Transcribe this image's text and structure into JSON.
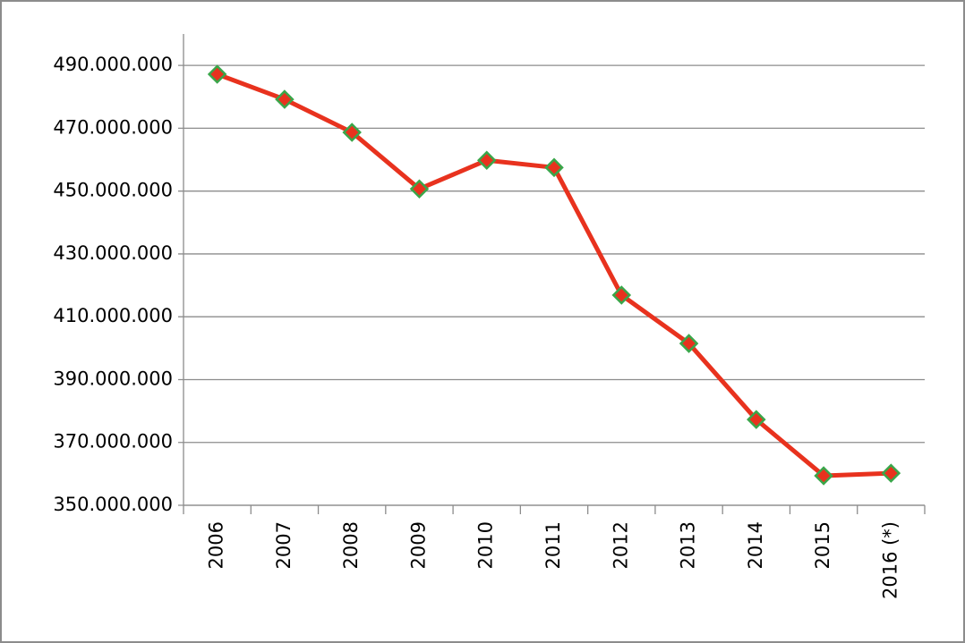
{
  "chart_data": {
    "type": "line",
    "categories": [
      "2006",
      "2007",
      "2008",
      "2009",
      "2010",
      "2011",
      "2012",
      "2013",
      "2014",
      "2015",
      "2016 (*)"
    ],
    "values": [
      487200000,
      479200000,
      468700000,
      450700000,
      459800000,
      457500000,
      416900000,
      401500000,
      377300000,
      359400000,
      360200000
    ],
    "color": "#e8321e",
    "marker_color": "#e8321e",
    "marker_edge_color": "#3aa64a",
    "ylim": [
      350000000,
      500000000
    ],
    "yticks": [
      {
        "value": 350000000,
        "label": "350.000.000"
      },
      {
        "value": 370000000,
        "label": "370.000.000"
      },
      {
        "value": 390000000,
        "label": "390.000.000"
      },
      {
        "value": 410000000,
        "label": "410.000.000"
      },
      {
        "value": 430000000,
        "label": "430.000.000"
      },
      {
        "value": 450000000,
        "label": "450.000.000"
      },
      {
        "value": 470000000,
        "label": "470.000.000"
      },
      {
        "value": 490000000,
        "label": "490.000.000"
      }
    ],
    "grid": true
  }
}
